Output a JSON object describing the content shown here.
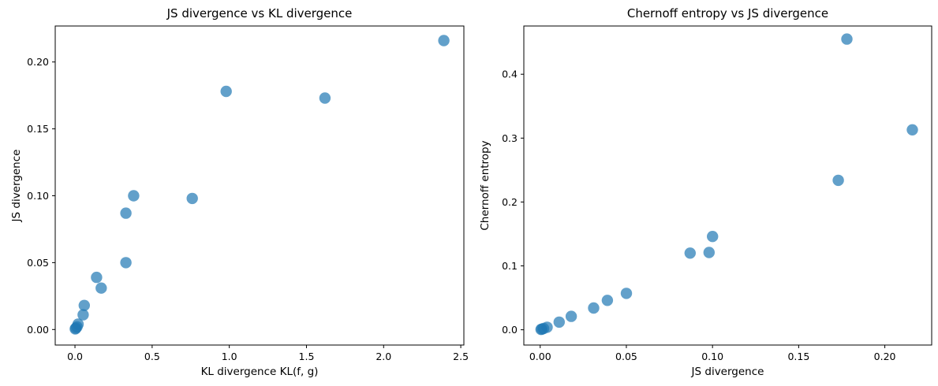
{
  "figure": {
    "background": "#ffffff",
    "marker_color": "#1f77b4",
    "marker_opacity": 0.7,
    "text_color": "#000000"
  },
  "chart_data": [
    {
      "type": "scatter",
      "title": "JS divergence vs KL divergence",
      "xlabel": "KL divergence KL(f, g)",
      "ylabel": "JS divergence",
      "xlim": [
        -0.128,
        2.52
      ],
      "ylim": [
        -0.0116,
        0.2269
      ],
      "xticks": {
        "values": [
          0,
          0.5,
          1.0,
          1.5,
          2.0,
          2.5
        ],
        "labels": [
          "0.0",
          "0.5",
          "1.0",
          "1.5",
          "2.0",
          "2.5"
        ]
      },
      "yticks": {
        "values": [
          0,
          0.05,
          0.1,
          0.15,
          0.2
        ],
        "labels": [
          "0.00",
          "0.05",
          "0.10",
          "0.15",
          "0.20"
        ]
      },
      "grid": false,
      "legend": null,
      "points": [
        [
          0.002,
          0.0005
        ],
        [
          0.006,
          0.001
        ],
        [
          0.013,
          0.002
        ],
        [
          0.02,
          0.004
        ],
        [
          0.053,
          0.011
        ],
        [
          0.06,
          0.018
        ],
        [
          0.14,
          0.039
        ],
        [
          0.17,
          0.031
        ],
        [
          0.33,
          0.05
        ],
        [
          0.33,
          0.087
        ],
        [
          0.38,
          0.1
        ],
        [
          0.76,
          0.098
        ],
        [
          0.98,
          0.178
        ],
        [
          1.62,
          0.173
        ],
        [
          2.39,
          0.216
        ]
      ]
    },
    {
      "type": "scatter",
      "title": "Chernoff entropy vs JS divergence",
      "xlabel": "JS divergence",
      "ylabel": "Chernoff entropy",
      "xlim": [
        -0.0095,
        0.2272
      ],
      "ylim": [
        -0.0239,
        0.4755
      ],
      "xticks": {
        "values": [
          0,
          0.05,
          0.1,
          0.15,
          0.2
        ],
        "labels": [
          "0.00",
          "0.05",
          "0.10",
          "0.15",
          "0.20"
        ]
      },
      "yticks": {
        "values": [
          0,
          0.1,
          0.2,
          0.3,
          0.4
        ],
        "labels": [
          "0.0",
          "0.1",
          "0.2",
          "0.3",
          "0.4"
        ]
      },
      "grid": false,
      "legend": null,
      "points": [
        [
          0.0005,
          0.0005
        ],
        [
          0.001,
          0.001
        ],
        [
          0.002,
          0.002
        ],
        [
          0.004,
          0.004
        ],
        [
          0.011,
          0.012
        ],
        [
          0.018,
          0.021
        ],
        [
          0.031,
          0.034
        ],
        [
          0.039,
          0.046
        ],
        [
          0.05,
          0.057
        ],
        [
          0.087,
          0.12
        ],
        [
          0.098,
          0.121
        ],
        [
          0.1,
          0.146
        ],
        [
          0.173,
          0.234
        ],
        [
          0.178,
          0.455
        ],
        [
          0.216,
          0.313
        ]
      ]
    }
  ]
}
